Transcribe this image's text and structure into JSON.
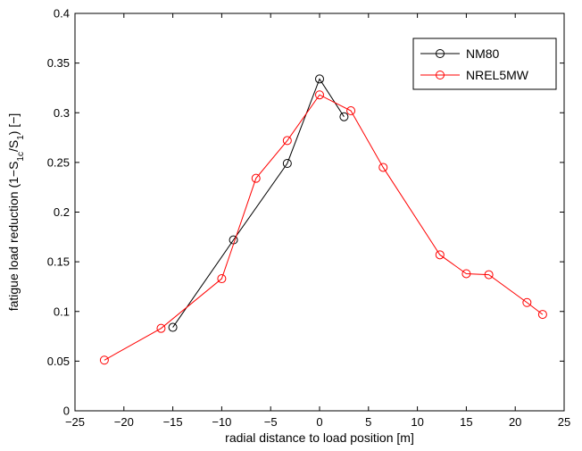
{
  "chart_data": {
    "type": "line",
    "xlabel": "radial distance to load position [m]",
    "ylabel": {
      "prefix": "fatigue load reduction (1−S",
      "sub1": "1c",
      "mid": "/S",
      "sub2": "1",
      "suffix": ") [−]"
    },
    "xlim": [
      -25,
      25
    ],
    "ylim": [
      0,
      0.4
    ],
    "xticks": [
      -25,
      -20,
      -15,
      -10,
      -5,
      0,
      5,
      10,
      15,
      20,
      25
    ],
    "xtick_labels": [
      "−25",
      "−20",
      "−15",
      "−10",
      "−5",
      "0",
      "5",
      "10",
      "15",
      "20",
      "25"
    ],
    "yticks": [
      0,
      0.05,
      0.1,
      0.15,
      0.2,
      0.25,
      0.3,
      0.35,
      0.4
    ],
    "ytick_labels": [
      "0",
      "0.05",
      "0.1",
      "0.15",
      "0.2",
      "0.25",
      "0.3",
      "0.35",
      "0.4"
    ],
    "grid": false,
    "legend_position": "top-right",
    "series": [
      {
        "name": "NM80",
        "color": "#000000",
        "marker": "circle",
        "x": [
          -15,
          -8.8,
          -3.3,
          0,
          2.5
        ],
        "y": [
          0.084,
          0.172,
          0.249,
          0.334,
          0.296
        ]
      },
      {
        "name": "NREL5MW",
        "color": "#ff0000",
        "marker": "circle",
        "x": [
          -22,
          -16.2,
          -10,
          -6.5,
          -3.3,
          0,
          3.2,
          6.5,
          12.3,
          15,
          17.3,
          21.2,
          22.8
        ],
        "y": [
          0.051,
          0.083,
          0.133,
          0.234,
          0.272,
          0.318,
          0.302,
          0.245,
          0.157,
          0.138,
          0.137,
          0.109,
          0.097
        ]
      }
    ]
  }
}
